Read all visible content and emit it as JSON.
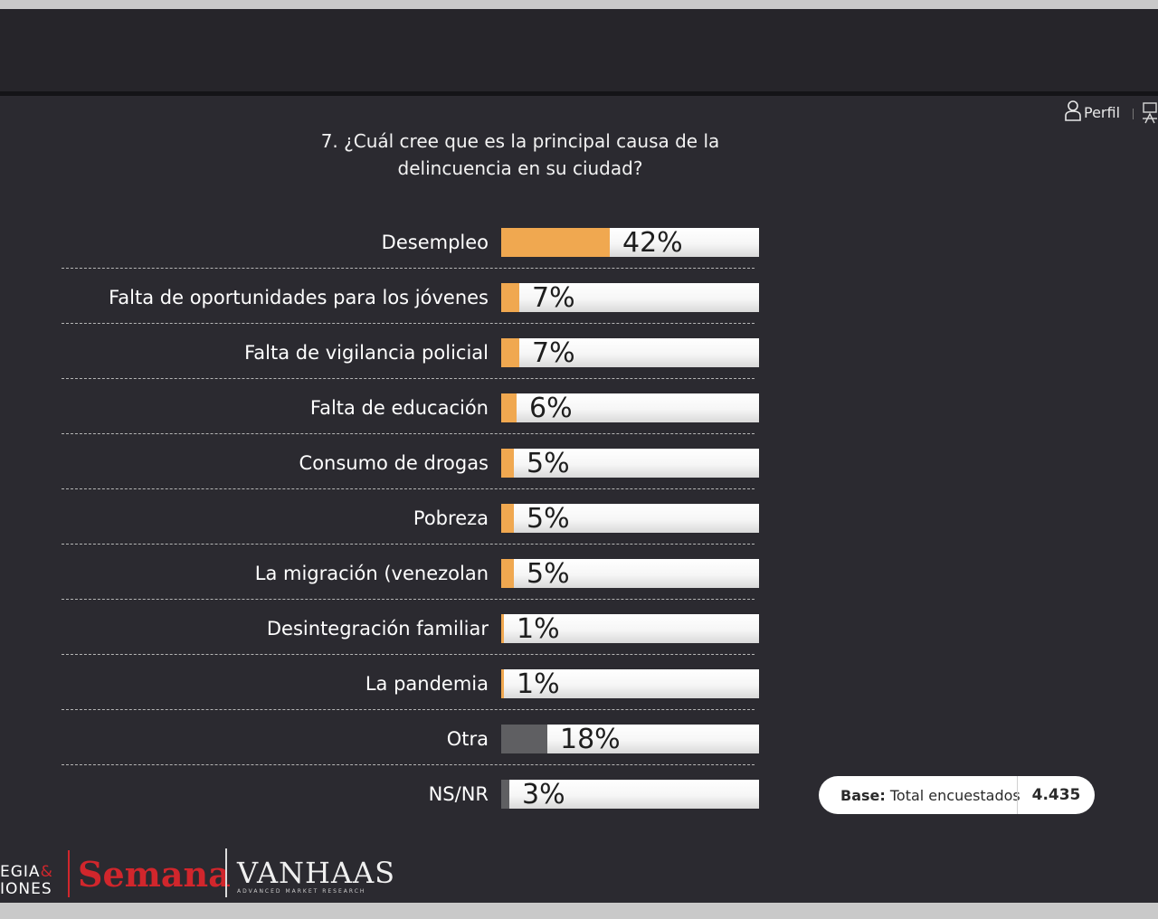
{
  "header": {
    "profile_label": "Perfil"
  },
  "chart_data": {
    "type": "bar",
    "title": "7. ¿Cuál cree que es la principal causa de la delincuencia en su ciudad?",
    "categories": [
      "Desempleo",
      "Falta de oportunidades para los jóvenes",
      "Falta de vigilancia policial",
      "Falta de educación",
      "Consumo de drogas",
      "Pobreza",
      "La migración (venezolan",
      "Desintegración familiar",
      "La pandemia",
      "Otra",
      "NS/NR"
    ],
    "values": [
      42,
      7,
      7,
      6,
      5,
      5,
      5,
      1,
      1,
      18,
      3
    ],
    "value_labels": [
      "42%",
      "7%",
      "7%",
      "6%",
      "5%",
      "5%",
      "5%",
      "1%",
      "1%",
      "18%",
      "3%"
    ],
    "bar_colors": [
      "#f0a850",
      "#f0a850",
      "#f0a850",
      "#f0a850",
      "#f0a850",
      "#f0a850",
      "#f0a850",
      "#f0a850",
      "#f0a850",
      "#5f5f62",
      "#5f5f62"
    ],
    "orientation": "horizontal",
    "xlim": [
      0,
      100
    ]
  },
  "base": {
    "label_bold": "Base:",
    "label_text": " Total encuestados",
    "value": "4.435"
  },
  "logos": {
    "left_line1": "EGIA",
    "left_amp": "&",
    "left_line2": "IONES",
    "semana": "Semana",
    "vanhaas": "VANHAAS",
    "vanhaas_sub": "ADVANCED MARKET RESEARCH"
  },
  "colors": {
    "background": "#2b2a30",
    "accent_orange": "#f0a850",
    "accent_gray": "#5f5f62",
    "brand_red": "#d1262c"
  }
}
